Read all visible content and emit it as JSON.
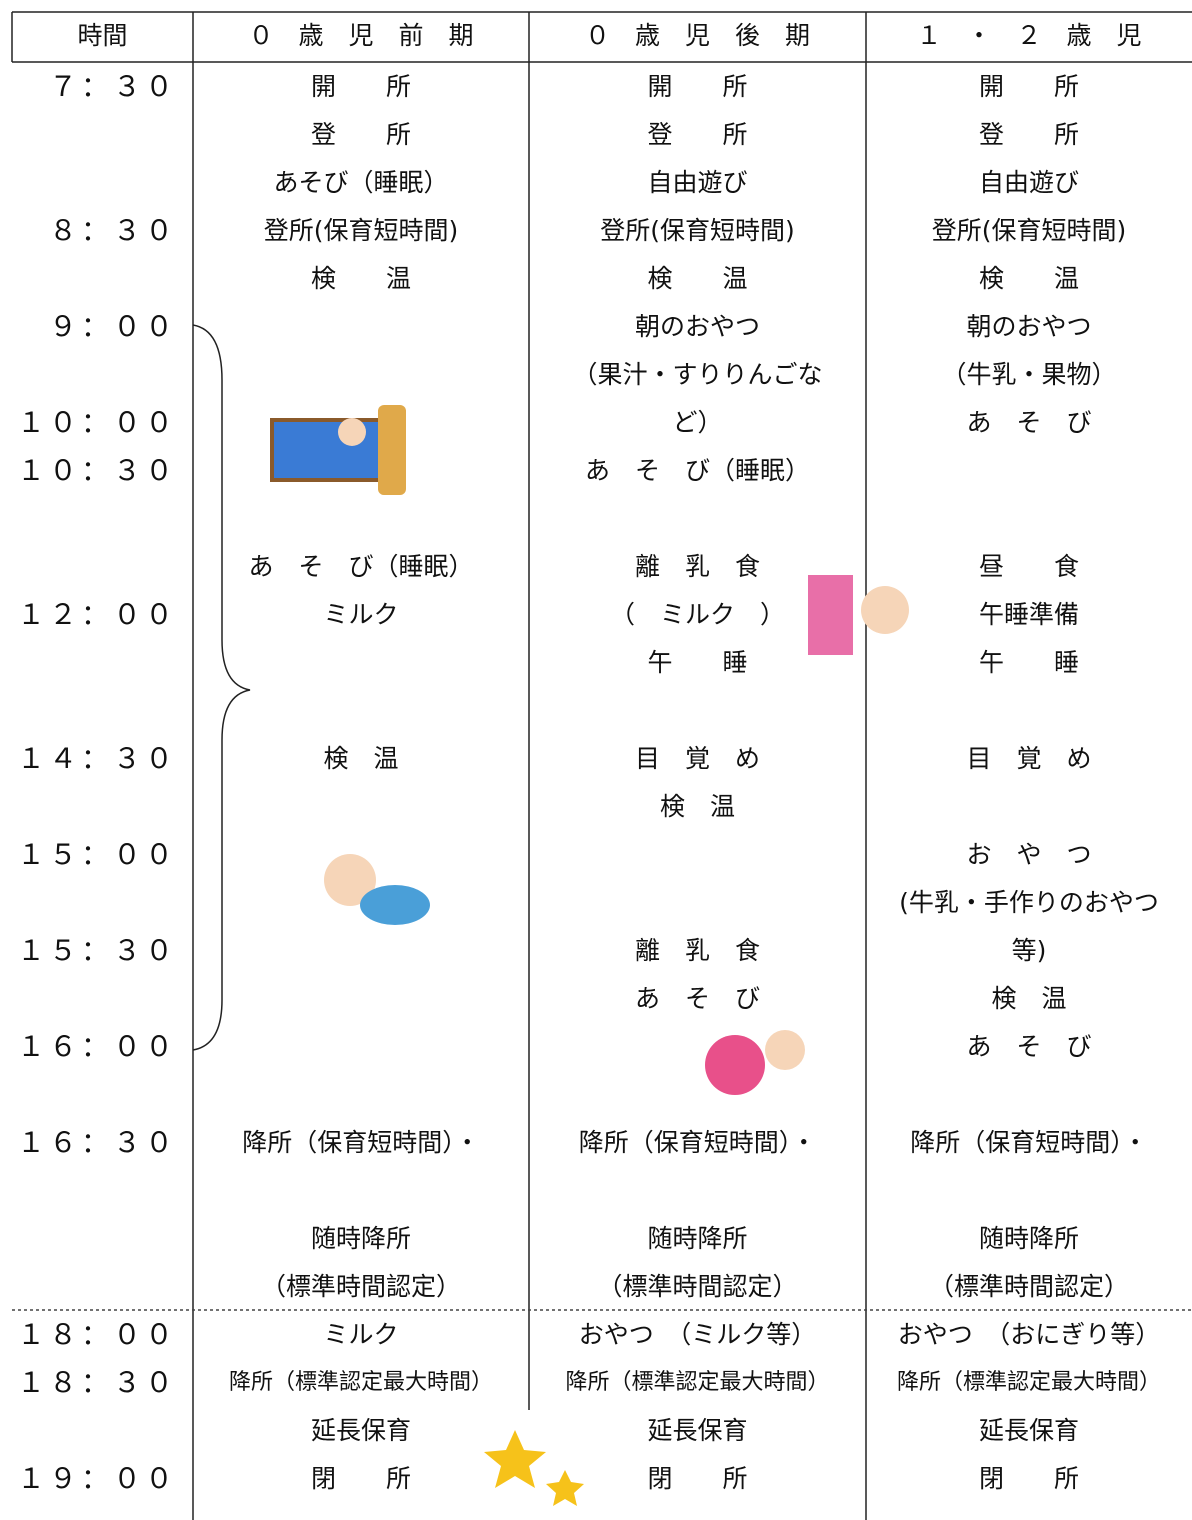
{
  "table": {
    "header": [
      "時間",
      "０　歳　児　前　期",
      "０　歳　児　後　期",
      "１　・　２　歳　児"
    ],
    "rows": [
      [
        "７：３０",
        "開　　所",
        "開　　所",
        "開　　所"
      ],
      [
        null,
        "登　　所",
        "登　　所",
        "登　　所"
      ],
      [
        null,
        "あそび（睡眠）",
        "自由遊び",
        "自由遊び"
      ],
      [
        "８：３０",
        "登所(保育短時間)",
        "登所(保育短時間)",
        "登所(保育短時間)"
      ],
      [
        null,
        "検　　温",
        "検　　温",
        "検　　温"
      ],
      [
        "９：００",
        null,
        "朝のおやつ",
        "朝のおやつ"
      ],
      [
        null,
        null,
        "（果汁・すりりんごな",
        "（牛乳・果物）"
      ],
      [
        "１０：００",
        null,
        "ど）",
        "あ　そ　び"
      ],
      [
        "１０：３０",
        null,
        "あ　そ　び（睡眠）",
        null
      ],
      [
        null,
        null,
        null,
        null
      ],
      [
        null,
        "あ　そ　び（睡眠）",
        "離　乳　食",
        "昼　　食"
      ],
      [
        "１２：００",
        "ミルク",
        "（　ミルク　）",
        "午睡準備"
      ],
      [
        null,
        null,
        "午　　睡",
        "午　　睡"
      ],
      [
        null,
        null,
        null,
        null
      ],
      [
        "１４：３０",
        "検　温",
        "目　覚　め",
        "目　覚　め"
      ],
      [
        null,
        null,
        "検　温",
        null
      ],
      [
        "１５：００",
        null,
        null,
        "お　や　つ"
      ],
      [
        null,
        null,
        null,
        "(牛乳・手作りのおやつ"
      ],
      [
        "１５：３０",
        null,
        "離　乳　食",
        "等)"
      ],
      [
        null,
        null,
        "あ　そ　び",
        "検　温"
      ],
      [
        "１６：００",
        null,
        null,
        "あ　そ　び"
      ],
      [
        null,
        null,
        null,
        null
      ],
      [
        "１６：３０",
        "降所（保育短時間）・",
        "降所（保育短時間）・",
        "降所（保育短時間）・"
      ],
      [
        null,
        null,
        null,
        null
      ],
      [
        null,
        "随時降所",
        "随時降所",
        "随時降所"
      ],
      [
        null,
        "（標準時間認定）",
        "（標準時間認定）",
        "（標準時間認定）"
      ],
      [
        "１８：００",
        "ミルク",
        "おやつ　（ミルク等）",
        "おやつ　（おにぎり等）"
      ],
      [
        "１８：３０",
        "降所（標準認定最大時間）",
        "降所（標準認定最大時間）",
        "降所（標準認定最大時間）"
      ],
      [
        null,
        "延長保育",
        "延長保育",
        "延長保育"
      ],
      [
        "１９：００",
        "閉　　所",
        "閉　　所",
        "閉　　所"
      ]
    ]
  }
}
